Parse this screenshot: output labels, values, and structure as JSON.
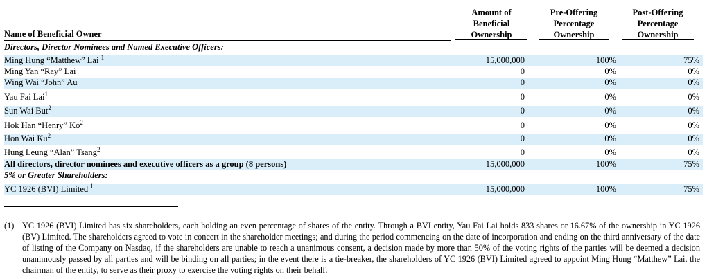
{
  "table": {
    "headers": {
      "owner": "Name of Beneficial Owner",
      "amount": [
        "Amount of",
        "Beneficial",
        "Ownership"
      ],
      "pre": [
        "Pre-Offering",
        "Percentage",
        "Ownership"
      ],
      "post": [
        "Post-Offering",
        "Percentage",
        "Ownership"
      ]
    },
    "section_directors": "Directors, Director Nominees and Named Executive Officers:",
    "rows": [
      {
        "name": "Ming Hung “Matthew” Lai",
        "sup": "1",
        "amount": "15,000,000",
        "pre": "100%",
        "post": "75%"
      },
      {
        "name": "Ming Yan “Ray” Lai",
        "sup": "",
        "amount": "0",
        "pre": "0%",
        "post": "0%"
      },
      {
        "name": "Wing Wai “John” Au",
        "sup": "",
        "amount": "0",
        "pre": "0%",
        "post": "0%"
      },
      {
        "name": "Yau Fai Lai",
        "sup": "1",
        "amount": "0",
        "pre": "0%",
        "post": "0%"
      },
      {
        "name": "Sun Wai But",
        "sup": "2",
        "amount": "0",
        "pre": "0%",
        "post": "0%"
      },
      {
        "name": "Hok Han “Henry” Ko",
        "sup": "2",
        "amount": "0",
        "pre": "0%",
        "post": "0%"
      },
      {
        "name": "Hon Wai Ku",
        "sup": "2",
        "amount": "0",
        "pre": "0%",
        "post": "0%"
      },
      {
        "name": "Hung Leung “Alan” Tsang",
        "sup": "2",
        "amount": "0",
        "pre": "0%",
        "post": "0%"
      }
    ],
    "group_row": {
      "name": "All directors, director nominees and executive officers as a group (8 persons)",
      "amount": "15,000,000",
      "pre": "100%",
      "post": "75%"
    },
    "section_5pct": "5% or Greater Shareholders:",
    "holder_row": {
      "name": "YC 1926 (BVI) Limited",
      "sup": "1",
      "amount": "15,000,000",
      "pre": "100%",
      "post": "75%"
    }
  },
  "footnote": {
    "mark": "(1)",
    "text": "YC 1926 (BVI) Limited has six shareholders, each holding an even percentage of shares of the entity. Through a BVI entity, Yau Fai Lai holds 833 shares or 16.67% of the ownership in YC 1926 (BV) Limited. The shareholders agreed to vote in concert in the shareholder meetings; and during the period commencing on the date of incorporation and ending on the third anniversary of the date of listing of the Company on Nasdaq, if the shareholders are unable to reach a unanimous consent, a decision made by more than 50% of the voting rights of the parties will be deemed a decision unanimously passed by all parties and will be binding on all parties; in the event there is a tie-breaker, the shareholders of YC 1926 (BVI) Limited agreed to appoint Ming Hung “Matthew” Lai, the chairman of the entity, to serve as their proxy to exercise the voting rights on their behalf."
  }
}
